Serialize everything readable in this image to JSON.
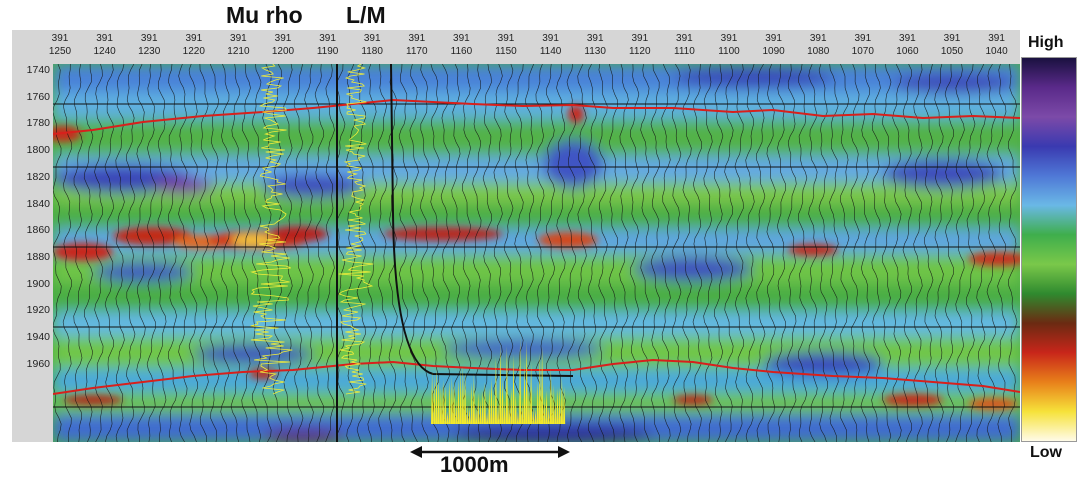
{
  "labels": {
    "mu_rho": "Mu rho",
    "lm": "L/M",
    "scale_bar": "1000m"
  },
  "colorbar": {
    "high": "High",
    "low": "Low",
    "colors": [
      "#1a1140",
      "#5a2a8a",
      "#7c4aa8",
      "#3a3ab0",
      "#4f78d6",
      "#6ab8e6",
      "#3fae4c",
      "#7ac84a",
      "#2f8a2f",
      "#6b2a12",
      "#c8261a",
      "#e8801a",
      "#f6e23a",
      "#fffbe8"
    ]
  },
  "x_axis": {
    "inline": "391",
    "crosslines": [
      "1250",
      "1240",
      "1230",
      "1220",
      "1210",
      "1200",
      "1190",
      "1180",
      "1170",
      "1160",
      "1150",
      "1140",
      "1130",
      "1120",
      "1110",
      "1100",
      "1090",
      "1080",
      "1070",
      "1060",
      "1050",
      "1040"
    ]
  },
  "y_axis": {
    "ticks": [
      "1740",
      "1760",
      "1780",
      "1800",
      "1820",
      "1840",
      "1860",
      "1880",
      "1900",
      "1920",
      "1940",
      "1960"
    ]
  }
}
